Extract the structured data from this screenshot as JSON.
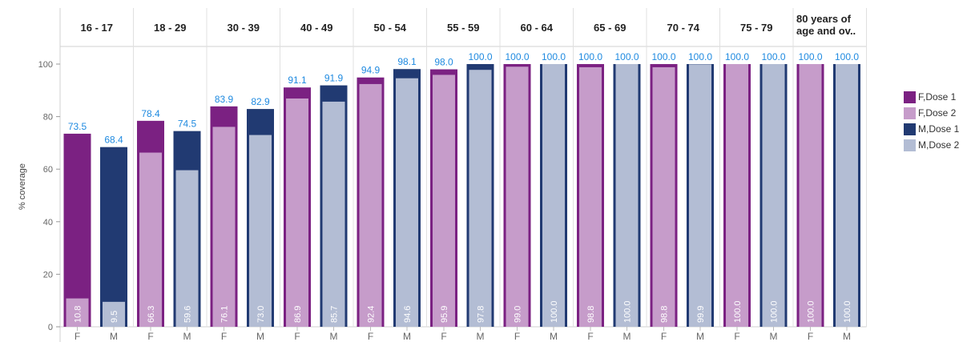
{
  "chart_data": {
    "type": "bar",
    "ylabel": "% coverage",
    "xlabel": "",
    "ylim": [
      0,
      100
    ],
    "yticks": [
      0,
      20,
      40,
      60,
      80,
      100
    ],
    "grid": false,
    "legend_position": "right",
    "age_groups": [
      "16 - 17",
      "18 - 29",
      "30 - 39",
      "40 - 49",
      "50 - 54",
      "55 - 59",
      "60 - 64",
      "65 - 69",
      "70 - 74",
      "75 - 79",
      "80 years of age and ov.."
    ],
    "sexes": [
      "F",
      "M"
    ],
    "series": [
      {
        "name": "F,Dose 1",
        "color": "#7b2182",
        "values": [
          73.5,
          78.4,
          83.9,
          91.1,
          94.9,
          98.0,
          100.0,
          100.0,
          100.0,
          100.0,
          100.0
        ]
      },
      {
        "name": "F,Dose 2",
        "color": "#c69cca",
        "values": [
          10.8,
          66.3,
          76.1,
          86.9,
          92.4,
          95.9,
          99.0,
          98.8,
          98.8,
          100.0,
          100.0
        ]
      },
      {
        "name": "M,Dose 1",
        "color": "#213a72",
        "values": [
          68.4,
          74.5,
          82.9,
          91.9,
          98.1,
          100.0,
          100.0,
          100.0,
          100.0,
          100.0,
          100.0
        ]
      },
      {
        "name": "M,Dose 2",
        "color": "#b3bdd4",
        "values": [
          9.5,
          59.6,
          73.0,
          85.7,
          94.6,
          97.8,
          100.0,
          100.0,
          99.9,
          100.0,
          100.0
        ]
      }
    ],
    "dose1_label_color": "#1f8ae0",
    "dose2_label_color": "#ffffff"
  }
}
